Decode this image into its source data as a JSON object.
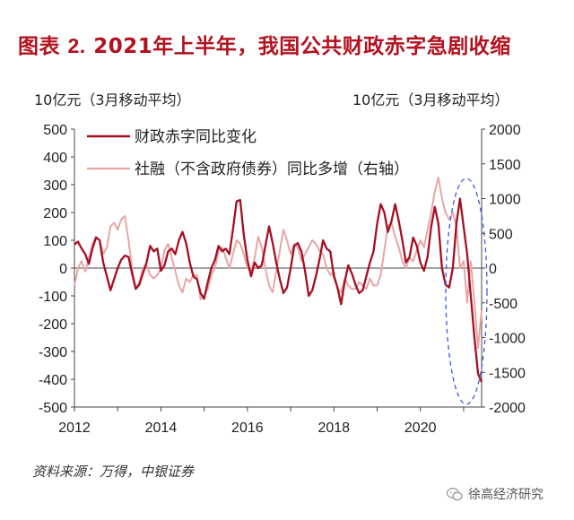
{
  "header": {
    "title_prefix": "图表",
    "title_number": "2.",
    "title_text": "2021年上半年，我国公共财政赤字急剧收缩"
  },
  "units": {
    "left": "10亿元（3月移动平均）",
    "right": "10亿元（3月移动平均）"
  },
  "footer": {
    "source": "资料来源：万得，中银证券",
    "watermark": "徐高经济研究"
  },
  "colors": {
    "series_deficit": "#a50f22",
    "series_tsf": "#e7a6a6",
    "annotation": "#3b5bdb",
    "title": "#b2121f"
  },
  "chart_data": {
    "type": "line",
    "x_ticks": [
      "2012",
      "2014",
      "2016",
      "2018",
      "2020"
    ],
    "xlim": [
      "2012-01",
      "2021-06"
    ],
    "y_left": {
      "ylim": [
        -500,
        500
      ],
      "ticks": [
        "500",
        "400",
        "300",
        "200",
        "100",
        "0",
        "-100",
        "-200",
        "-300",
        "-400",
        "-500"
      ]
    },
    "y_right": {
      "ylim": [
        -2000,
        2000
      ],
      "ticks": [
        "2000",
        "1500",
        "1000",
        "500",
        "0",
        "-500",
        "-1000",
        "-1500",
        "-2000"
      ]
    },
    "legend_position": "top-left",
    "annotation": "dashed-ellipse around 2021",
    "series": [
      {
        "name": "财政赤字同比变化",
        "axis": "left",
        "color": "#a50f22",
        "points": [
          [
            "2012-01",
            85
          ],
          [
            "2012-02",
            95
          ],
          [
            "2012-03",
            70
          ],
          [
            "2012-04",
            50
          ],
          [
            "2012-05",
            15
          ],
          [
            "2012-06",
            70
          ],
          [
            "2012-07",
            110
          ],
          [
            "2012-08",
            100
          ],
          [
            "2012-09",
            20
          ],
          [
            "2012-10",
            -30
          ],
          [
            "2012-11",
            -80
          ],
          [
            "2012-12",
            -40
          ],
          [
            "2013-01",
            0
          ],
          [
            "2013-02",
            30
          ],
          [
            "2013-03",
            45
          ],
          [
            "2013-04",
            40
          ],
          [
            "2013-05",
            -20
          ],
          [
            "2013-06",
            -75
          ],
          [
            "2013-07",
            -60
          ],
          [
            "2013-08",
            -20
          ],
          [
            "2013-09",
            20
          ],
          [
            "2013-10",
            80
          ],
          [
            "2013-11",
            60
          ],
          [
            "2013-12",
            70
          ],
          [
            "2014-01",
            -10
          ],
          [
            "2014-02",
            10
          ],
          [
            "2014-03",
            60
          ],
          [
            "2014-04",
            70
          ],
          [
            "2014-05",
            50
          ],
          [
            "2014-06",
            100
          ],
          [
            "2014-07",
            130
          ],
          [
            "2014-08",
            90
          ],
          [
            "2014-09",
            20
          ],
          [
            "2014-10",
            -30
          ],
          [
            "2014-11",
            -40
          ],
          [
            "2014-12",
            -90
          ],
          [
            "2015-01",
            -110
          ],
          [
            "2015-02",
            -50
          ],
          [
            "2015-03",
            0
          ],
          [
            "2015-04",
            30
          ],
          [
            "2015-05",
            80
          ],
          [
            "2015-06",
            60
          ],
          [
            "2015-07",
            70
          ],
          [
            "2015-08",
            50
          ],
          [
            "2015-09",
            140
          ],
          [
            "2015-10",
            240
          ],
          [
            "2015-11",
            245
          ],
          [
            "2015-12",
            120
          ],
          [
            "2016-01",
            30
          ],
          [
            "2016-02",
            -30
          ],
          [
            "2016-03",
            20
          ],
          [
            "2016-04",
            0
          ],
          [
            "2016-05",
            10
          ],
          [
            "2016-06",
            80
          ],
          [
            "2016-07",
            150
          ],
          [
            "2016-08",
            90
          ],
          [
            "2016-09",
            20
          ],
          [
            "2016-10",
            -40
          ],
          [
            "2016-11",
            -90
          ],
          [
            "2016-12",
            -70
          ],
          [
            "2017-01",
            0
          ],
          [
            "2017-02",
            80
          ],
          [
            "2017-03",
            90
          ],
          [
            "2017-04",
            60
          ],
          [
            "2017-05",
            -10
          ],
          [
            "2017-06",
            -100
          ],
          [
            "2017-07",
            -80
          ],
          [
            "2017-08",
            -30
          ],
          [
            "2017-09",
            30
          ],
          [
            "2017-10",
            100
          ],
          [
            "2017-11",
            70
          ],
          [
            "2017-12",
            60
          ],
          [
            "2018-01",
            -30
          ],
          [
            "2018-02",
            -70
          ],
          [
            "2018-03",
            -130
          ],
          [
            "2018-04",
            -50
          ],
          [
            "2018-05",
            10
          ],
          [
            "2018-06",
            -20
          ],
          [
            "2018-07",
            -60
          ],
          [
            "2018-08",
            -90
          ],
          [
            "2018-09",
            -80
          ],
          [
            "2018-10",
            -30
          ],
          [
            "2018-11",
            20
          ],
          [
            "2018-12",
            60
          ],
          [
            "2019-01",
            160
          ],
          [
            "2019-02",
            230
          ],
          [
            "2019-03",
            200
          ],
          [
            "2019-04",
            130
          ],
          [
            "2019-05",
            170
          ],
          [
            "2019-06",
            230
          ],
          [
            "2019-07",
            170
          ],
          [
            "2019-08",
            100
          ],
          [
            "2019-09",
            20
          ],
          [
            "2019-10",
            40
          ],
          [
            "2019-11",
            110
          ],
          [
            "2019-12",
            80
          ],
          [
            "2020-01",
            20
          ],
          [
            "2020-02",
            -10
          ],
          [
            "2020-03",
            40
          ],
          [
            "2020-04",
            150
          ],
          [
            "2020-05",
            220
          ],
          [
            "2020-06",
            160
          ],
          [
            "2020-07",
            0
          ],
          [
            "2020-08",
            -60
          ],
          [
            "2020-09",
            -70
          ],
          [
            "2020-10",
            0
          ],
          [
            "2020-11",
            160
          ],
          [
            "2020-12",
            250
          ],
          [
            "2021-01",
            150
          ],
          [
            "2021-02",
            50
          ],
          [
            "2021-03",
            -100
          ],
          [
            "2021-04",
            -250
          ],
          [
            "2021-05",
            -380
          ],
          [
            "2021-06",
            -410
          ]
        ]
      },
      {
        "name": "社融（不含政府债券）同比多增（右轴）",
        "axis": "right",
        "color": "#e7a6a6",
        "points": [
          [
            "2012-01",
            -250
          ],
          [
            "2012-02",
            0
          ],
          [
            "2012-03",
            100
          ],
          [
            "2012-04",
            -50
          ],
          [
            "2012-05",
            150
          ],
          [
            "2012-06",
            350
          ],
          [
            "2012-07",
            450
          ],
          [
            "2012-08",
            400
          ],
          [
            "2012-09",
            200
          ],
          [
            "2012-10",
            300
          ],
          [
            "2012-11",
            600
          ],
          [
            "2012-12",
            650
          ],
          [
            "2013-01",
            550
          ],
          [
            "2013-02",
            700
          ],
          [
            "2013-03",
            750
          ],
          [
            "2013-04",
            400
          ],
          [
            "2013-05",
            0
          ],
          [
            "2013-06",
            -300
          ],
          [
            "2013-07",
            -200
          ],
          [
            "2013-08",
            0
          ],
          [
            "2013-09",
            50
          ],
          [
            "2013-10",
            -100
          ],
          [
            "2013-11",
            -150
          ],
          [
            "2013-12",
            -100
          ],
          [
            "2014-01",
            0
          ],
          [
            "2014-02",
            250
          ],
          [
            "2014-03",
            350
          ],
          [
            "2014-04",
            150
          ],
          [
            "2014-05",
            -50
          ],
          [
            "2014-06",
            -250
          ],
          [
            "2014-07",
            -350
          ],
          [
            "2014-08",
            -150
          ],
          [
            "2014-09",
            -200
          ],
          [
            "2014-10",
            -100
          ],
          [
            "2014-11",
            -100
          ],
          [
            "2014-12",
            -450
          ],
          [
            "2015-01",
            -400
          ],
          [
            "2015-02",
            -300
          ],
          [
            "2015-03",
            -100
          ],
          [
            "2015-04",
            0
          ],
          [
            "2015-05",
            250
          ],
          [
            "2015-06",
            300
          ],
          [
            "2015-07",
            150
          ],
          [
            "2015-08",
            0
          ],
          [
            "2015-09",
            200
          ],
          [
            "2015-10",
            400
          ],
          [
            "2015-11",
            350
          ],
          [
            "2015-12",
            200
          ],
          [
            "2016-01",
            0
          ],
          [
            "2016-02",
            -50
          ],
          [
            "2016-03",
            150
          ],
          [
            "2016-04",
            450
          ],
          [
            "2016-05",
            300
          ],
          [
            "2016-06",
            0
          ],
          [
            "2016-07",
            -250
          ],
          [
            "2016-08",
            -350
          ],
          [
            "2016-09",
            -50
          ],
          [
            "2016-10",
            250
          ],
          [
            "2016-11",
            550
          ],
          [
            "2016-12",
            400
          ],
          [
            "2017-01",
            200
          ],
          [
            "2017-02",
            350
          ],
          [
            "2017-03",
            300
          ],
          [
            "2017-04",
            100
          ],
          [
            "2017-05",
            200
          ],
          [
            "2017-06",
            300
          ],
          [
            "2017-07",
            400
          ],
          [
            "2017-08",
            350
          ],
          [
            "2017-09",
            250
          ],
          [
            "2017-10",
            200
          ],
          [
            "2017-11",
            0
          ],
          [
            "2017-12",
            -100
          ],
          [
            "2018-01",
            -50
          ],
          [
            "2018-02",
            -300
          ],
          [
            "2018-03",
            -350
          ],
          [
            "2018-04",
            -150
          ],
          [
            "2018-05",
            -250
          ],
          [
            "2018-06",
            -300
          ],
          [
            "2018-07",
            -300
          ],
          [
            "2018-08",
            -200
          ],
          [
            "2018-09",
            -250
          ],
          [
            "2018-10",
            -300
          ],
          [
            "2018-11",
            -150
          ],
          [
            "2018-12",
            -250
          ],
          [
            "2019-01",
            -250
          ],
          [
            "2019-02",
            -100
          ],
          [
            "2019-03",
            250
          ],
          [
            "2019-04",
            600
          ],
          [
            "2019-05",
            650
          ],
          [
            "2019-06",
            450
          ],
          [
            "2019-07",
            300
          ],
          [
            "2019-08",
            100
          ],
          [
            "2019-09",
            0
          ],
          [
            "2019-10",
            150
          ],
          [
            "2019-11",
            100
          ],
          [
            "2019-12",
            250
          ],
          [
            "2020-01",
            400
          ],
          [
            "2020-02",
            300
          ],
          [
            "2020-03",
            550
          ],
          [
            "2020-04",
            800
          ],
          [
            "2020-05",
            1100
          ],
          [
            "2020-06",
            1300
          ],
          [
            "2020-07",
            1000
          ],
          [
            "2020-08",
            800
          ],
          [
            "2020-09",
            700
          ],
          [
            "2020-10",
            800
          ],
          [
            "2020-11",
            600
          ],
          [
            "2020-12",
            0
          ],
          [
            "2021-01",
            100
          ],
          [
            "2021-02",
            -500
          ],
          [
            "2021-03",
            100
          ],
          [
            "2021-04",
            -500
          ],
          [
            "2021-05",
            -1150
          ],
          [
            "2021-06",
            -600
          ]
        ]
      }
    ]
  }
}
